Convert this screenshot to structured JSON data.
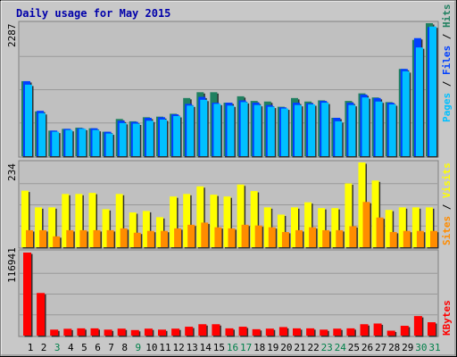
{
  "title": "Daily usage for May 2015",
  "colors": {
    "frame_bg": "#c8c8c8",
    "panel_bg": "#c0c0c0",
    "title": "#0000aa",
    "hits": "#208060",
    "files": "#0040ff",
    "pages": "#00c0ff",
    "visits": "#ffff00",
    "sites": "#ff8c00",
    "kbytes": "#ff0000",
    "weekend_day": "#00804a",
    "weekday_day": "#000000"
  },
  "legend": {
    "top": {
      "pages": "Pages",
      "files": "Files",
      "hits": "Hits",
      "sep": " / "
    },
    "mid": {
      "sites": "Sites",
      "visits": "Visits",
      "sep": " / "
    },
    "bottom": {
      "kbytes": "KBytes"
    }
  },
  "chart_data": [
    {
      "type": "bar",
      "title": "Daily usage for May 2015",
      "categories": [
        "1",
        "2",
        "3",
        "4",
        "5",
        "6",
        "7",
        "8",
        "9",
        "10",
        "11",
        "12",
        "13",
        "14",
        "15",
        "16",
        "17",
        "18",
        "19",
        "20",
        "21",
        "22",
        "23",
        "24",
        "25",
        "26",
        "27",
        "28",
        "29",
        "30",
        "31"
      ],
      "y_tick_label": "2287",
      "ylim": [
        0,
        2287
      ],
      "grid": true,
      "series": [
        {
          "name": "Hits",
          "values": [
            1290,
            770,
            440,
            470,
            490,
            480,
            420,
            640,
            600,
            670,
            680,
            730,
            1000,
            1100,
            1100,
            920,
            1030,
            950,
            940,
            850,
            1000,
            940,
            960,
            660,
            950,
            1080,
            1010,
            930,
            1500,
            2000,
            2287
          ]
        },
        {
          "name": "Files",
          "values": [
            1290,
            780,
            440,
            470,
            480,
            480,
            420,
            610,
            590,
            660,
            670,
            720,
            900,
            1020,
            920,
            920,
            960,
            920,
            880,
            840,
            920,
            910,
            950,
            660,
            920,
            1060,
            1000,
            920,
            1500,
            2030,
            2220
          ]
        },
        {
          "name": "Pages",
          "values": [
            1230,
            740,
            420,
            450,
            470,
            450,
            390,
            570,
            560,
            610,
            630,
            690,
            870,
            970,
            900,
            870,
            930,
            880,
            850,
            820,
            880,
            890,
            920,
            600,
            880,
            1010,
            940,
            890,
            1460,
            1870,
            2230
          ]
        }
      ]
    },
    {
      "type": "bar",
      "categories": [
        "1",
        "2",
        "3",
        "4",
        "5",
        "6",
        "7",
        "8",
        "9",
        "10",
        "11",
        "12",
        "13",
        "14",
        "15",
        "16",
        "17",
        "18",
        "19",
        "20",
        "21",
        "22",
        "23",
        "24",
        "25",
        "26",
        "27",
        "28",
        "29",
        "30",
        "31"
      ],
      "y_tick_label": "234",
      "ylim": [
        0,
        234
      ],
      "grid": true,
      "series": [
        {
          "name": "Visits",
          "values": [
            156,
            110,
            110,
            147,
            147,
            150,
            105,
            147,
            96,
            100,
            83,
            140,
            147,
            168,
            145,
            140,
            173,
            155,
            110,
            90,
            110,
            124,
            108,
            108,
            176,
            234,
            184,
            103,
            110,
            110,
            110
          ]
        },
        {
          "name": "Sites",
          "values": [
            47,
            47,
            30,
            47,
            47,
            47,
            47,
            52,
            40,
            45,
            45,
            52,
            62,
            68,
            55,
            52,
            62,
            60,
            55,
            42,
            47,
            55,
            47,
            47,
            58,
            125,
            82,
            42,
            45,
            45,
            45
          ]
        }
      ]
    },
    {
      "type": "bar",
      "categories": [
        "1",
        "2",
        "3",
        "4",
        "5",
        "6",
        "7",
        "8",
        "9",
        "10",
        "11",
        "12",
        "13",
        "14",
        "15",
        "16",
        "17",
        "18",
        "19",
        "20",
        "21",
        "22",
        "23",
        "24",
        "25",
        "26",
        "27",
        "28",
        "29",
        "30",
        "31"
      ],
      "y_tick_label": "116941",
      "ylim": [
        0,
        116941
      ],
      "grid": true,
      "series": [
        {
          "name": "KBytes",
          "values": [
            116941,
            60000,
            8400,
            9600,
            10200,
            10200,
            8400,
            9800,
            7800,
            9800,
            8400,
            9800,
            12500,
            16000,
            16000,
            10200,
            12500,
            9000,
            9800,
            12000,
            10200,
            10200,
            8400,
            9800,
            10200,
            16000,
            17000,
            6900,
            13800,
            27500,
            18800
          ]
        }
      ]
    }
  ],
  "weekend_days": [
    3,
    9,
    16,
    17,
    23,
    24,
    30,
    31
  ]
}
